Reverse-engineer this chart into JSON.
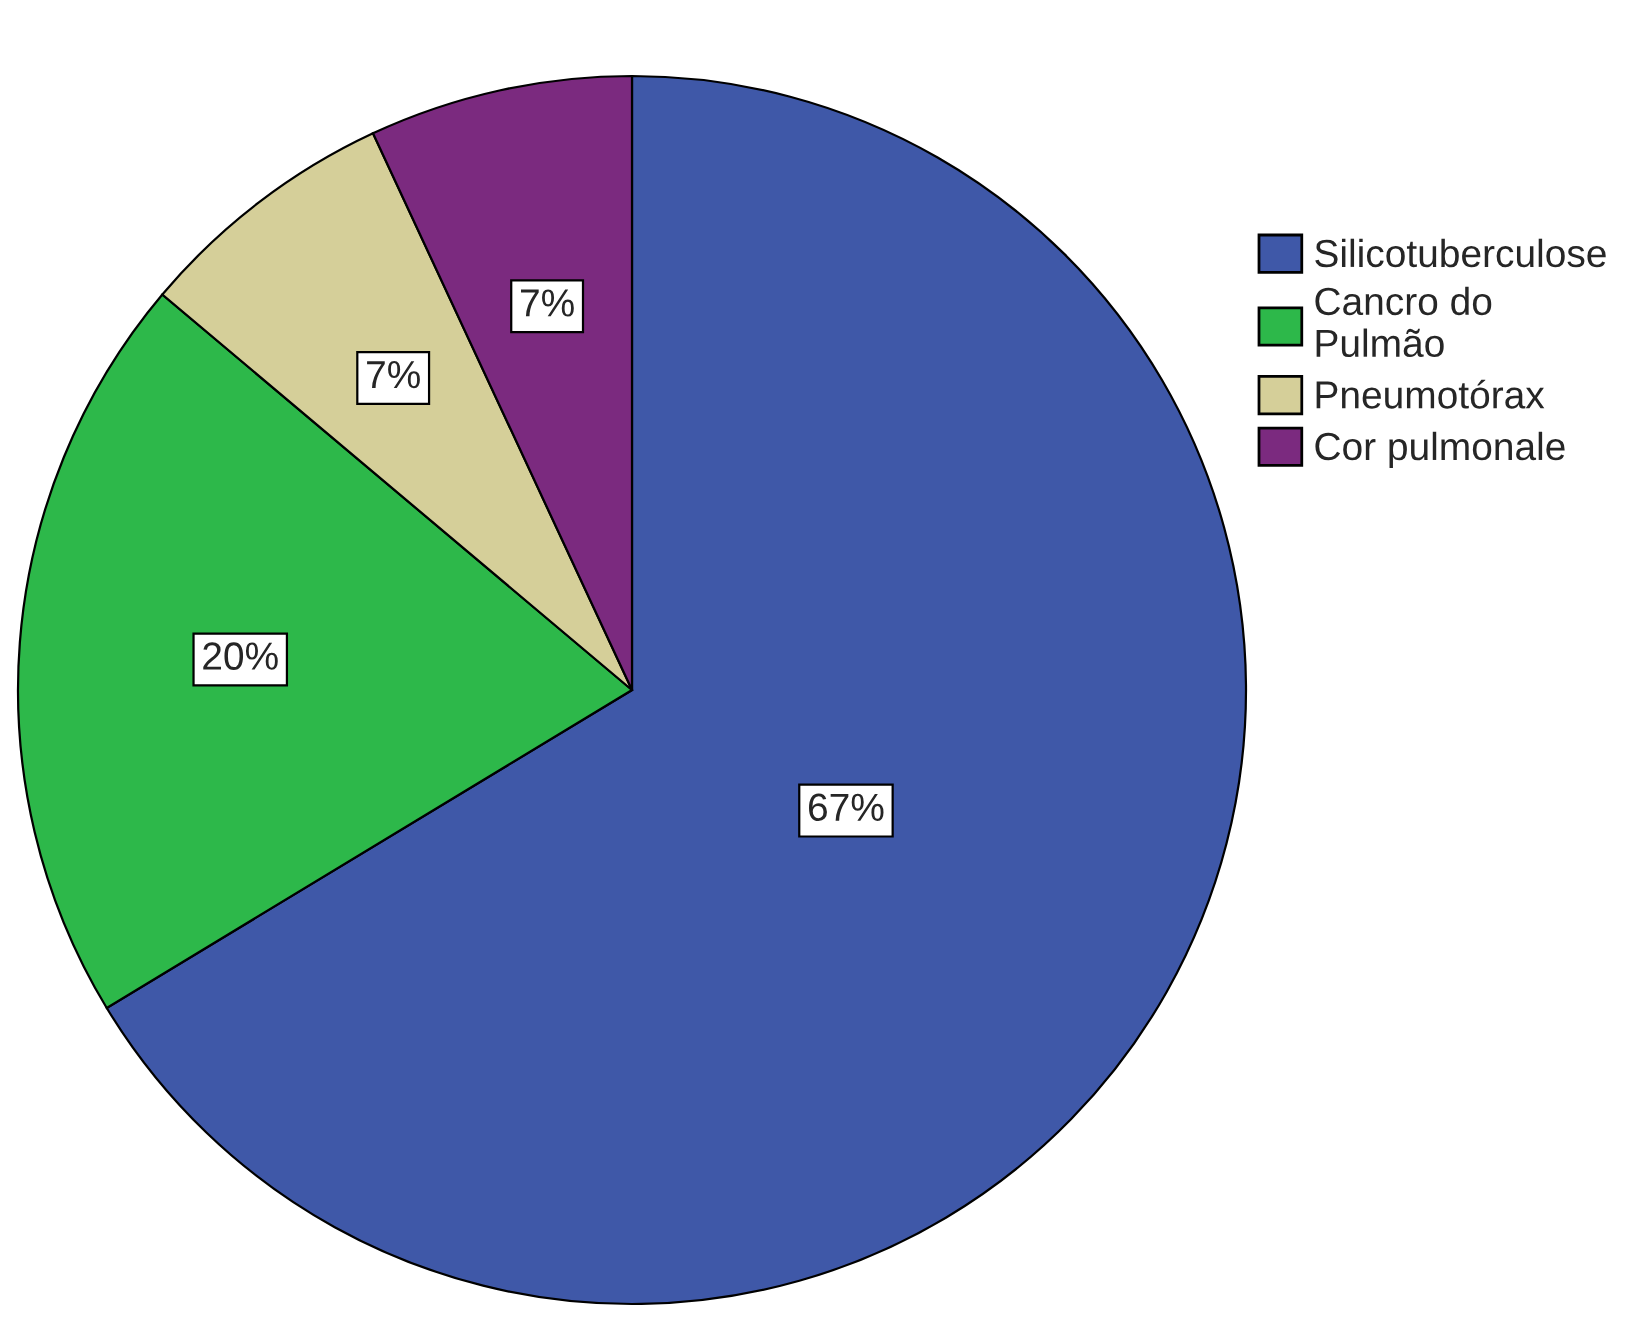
{
  "chart_data": {
    "type": "pie",
    "categories": [
      "Silicotuberculose",
      "Cancro do\nPulmão",
      "Pneumotórax",
      "Cor pulmonale"
    ],
    "values": [
      67,
      20,
      7,
      7
    ],
    "colors": [
      "#3f58a8",
      "#2db84a",
      "#d5cf99",
      "#7b2a7f"
    ],
    "value_labels": [
      "67%",
      "20%",
      "7%",
      "7%"
    ],
    "legend": "top right"
  }
}
